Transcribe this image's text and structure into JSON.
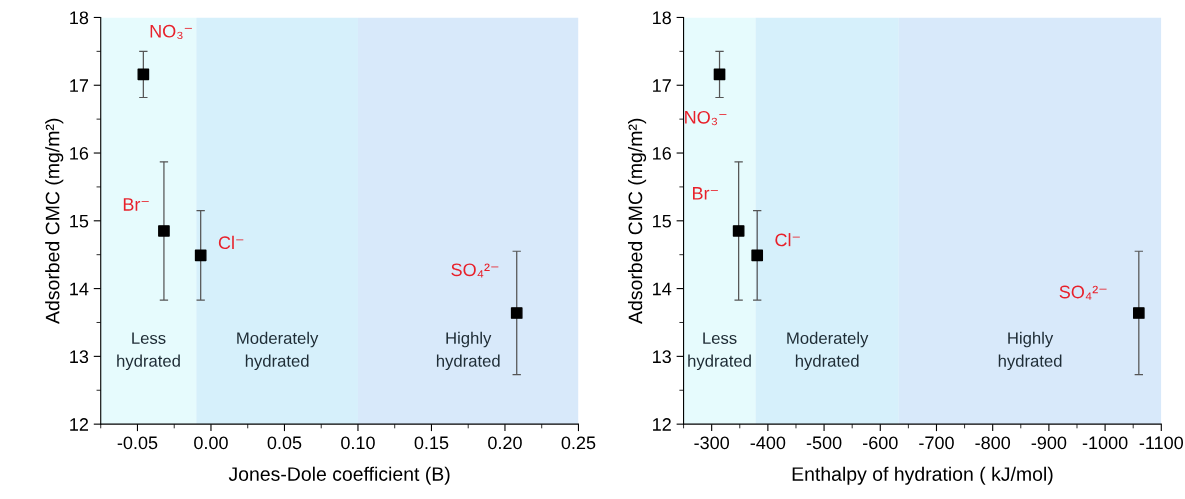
{
  "chart_data": [
    {
      "type": "scatter",
      "xlabel": "Jones-Dole coefficient (B)",
      "ylabel": "Adsorbed CMC (mg/m²)",
      "xlim": [
        -0.075,
        0.25
      ],
      "ylim": [
        12,
        18
      ],
      "xticks": [
        {
          "value": -0.075,
          "label": null
        },
        -0.05,
        {
          "value": -0.025,
          "label": null
        },
        {
          "value": 0,
          "label": "0.00"
        },
        {
          "value": 0.025,
          "label": null
        },
        0.05,
        {
          "value": 0.075,
          "label": null
        },
        {
          "value": 0.1,
          "label": "0.10"
        },
        {
          "value": 0.125,
          "label": null
        },
        0.15,
        {
          "value": 0.175,
          "label": null
        },
        {
          "value": 0.2,
          "label": "0.20"
        },
        {
          "value": 0.225,
          "label": null
        },
        0.25
      ],
      "yticks": [
        12,
        {
          "value": 12.5,
          "label": null
        },
        13,
        {
          "value": 13.5,
          "label": null
        },
        14,
        {
          "value": 14.5,
          "label": null
        },
        15,
        {
          "value": 15.5,
          "label": null
        },
        16,
        {
          "value": 16.5,
          "label": null
        },
        17,
        {
          "value": 17.5,
          "label": null
        },
        18
      ],
      "x": [
        -0.046,
        -0.032,
        -0.007,
        0.208
      ],
      "series": [
        {
          "color": "#000000",
          "values": [
            17.16,
            14.85,
            14.49,
            13.64
          ],
          "errors": [
            0.34,
            1.02,
            0.66,
            0.91
          ]
        }
      ],
      "marker": "square",
      "grid": false,
      "legend": false,
      "bands": [
        {
          "axis": "x",
          "from": -0.075,
          "to": -0.01,
          "label": "Less\nhydrated",
          "color": "#e6fbfd"
        },
        {
          "axis": "x",
          "from": -0.01,
          "to": 0.1,
          "label": "Moderately\nhydrated",
          "color": "#d6f0fb"
        },
        {
          "axis": "x",
          "from": 0.1,
          "to": 0.25,
          "label": "Highly\nhydrated",
          "color": "#d8e9fa"
        }
      ],
      "annotations": [
        {
          "text": "NO₃⁻",
          "x": -0.046,
          "y": 17.16
        },
        {
          "text": "Br⁻",
          "x": -0.032,
          "y": 14.85
        },
        {
          "text": "Cl⁻",
          "x": -0.007,
          "y": 14.49
        },
        {
          "text": "SO₄²⁻",
          "x": 0.208,
          "y": 13.64
        }
      ]
    },
    {
      "type": "scatter",
      "xlabel": "Enthalpy of hydration ( kJ/mol)",
      "ylabel": "Adsorbed CMC (mg/m²)",
      "xlim": [
        -250,
        -1100
      ],
      "ylim": [
        12,
        18
      ],
      "xticks": [
        {
          "value": -250,
          "label": null
        },
        -300,
        {
          "value": -350,
          "label": null
        },
        -400,
        {
          "value": -450,
          "label": null
        },
        -500,
        {
          "value": -550,
          "label": null
        },
        -600,
        {
          "value": -650,
          "label": null
        },
        -700,
        {
          "value": -750,
          "label": null
        },
        -800,
        {
          "value": -850,
          "label": null
        },
        -900,
        {
          "value": -950,
          "label": null
        },
        -1000,
        {
          "value": -1050,
          "label": null
        },
        -1100
      ],
      "yticks": [
        12,
        {
          "value": 12.5,
          "label": null
        },
        13,
        {
          "value": 13.5,
          "label": null
        },
        14,
        {
          "value": 14.5,
          "label": null
        },
        15,
        {
          "value": 15.5,
          "label": null
        },
        16,
        {
          "value": 16.5,
          "label": null
        },
        17,
        {
          "value": 17.5,
          "label": null
        },
        18
      ],
      "x": [
        -314,
        -348,
        -381,
        -1060
      ],
      "series": [
        {
          "color": "#000000",
          "values": [
            17.16,
            14.85,
            14.49,
            13.64
          ],
          "errors": [
            0.34,
            1.02,
            0.66,
            0.91
          ]
        }
      ],
      "marker": "square",
      "grid": false,
      "legend": false,
      "bands": [
        {
          "axis": "x",
          "from": -250,
          "to": -378,
          "label": "Less\nhydrated",
          "color": "#e6fbfd"
        },
        {
          "axis": "x",
          "from": -378,
          "to": -633,
          "label": "Moderately\nhydrated",
          "color": "#d6f0fb"
        },
        {
          "axis": "x",
          "from": -633,
          "to": -1100,
          "label": "Highly\nhydrated",
          "color": "#d8e9fa"
        }
      ],
      "annotations": [
        {
          "text": "NO₃⁻",
          "x": -314,
          "y": 17.16
        },
        {
          "text": "Br⁻",
          "x": -348,
          "y": 14.85
        },
        {
          "text": "Cl⁻",
          "x": -381,
          "y": 14.49
        },
        {
          "text": "SO₄²⁻",
          "x": -1060,
          "y": 13.64
        }
      ]
    }
  ]
}
